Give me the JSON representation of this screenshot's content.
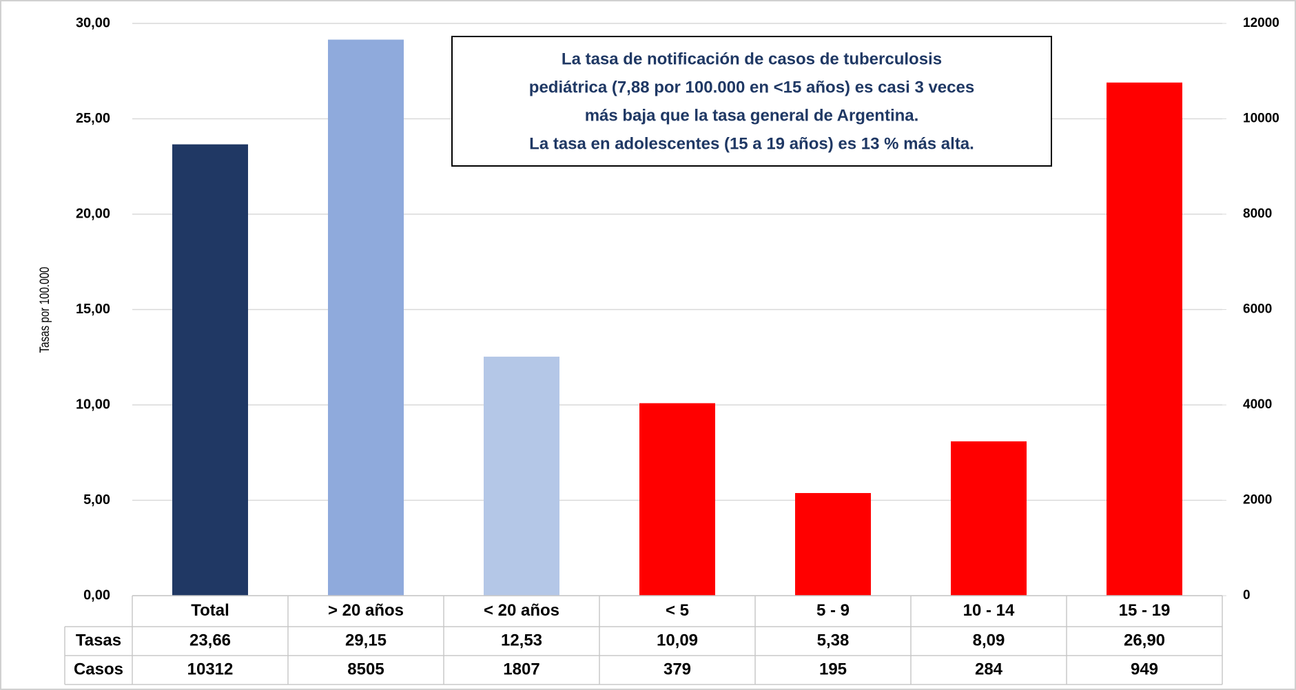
{
  "chart_data": {
    "type": "bar",
    "y_label": "Tasas por 100.000",
    "annotation": [
      "La tasa de  notificación de casos de tuberculosis",
      "pediátrica (7,88 por 100.000 en <15 años) es casi 3 veces",
      "más baja que la tasa general de Argentina.",
      "La tasa en adolescentes (15 a 19 años) es 13 % más alta."
    ],
    "categories": [
      "Total",
      "> 20 años",
      "< 20 años",
      "< 5",
      "5 - 9",
      "10 - 14",
      "15 - 19"
    ],
    "series": [
      {
        "name": "Tasas",
        "values": [
          23.66,
          29.15,
          12.53,
          10.09,
          5.38,
          8.09,
          26.9
        ],
        "value_labels": [
          "23,66",
          "29,15",
          "12,53",
          "10,09",
          "5,38",
          "8,09",
          "26,90"
        ],
        "colors": [
          "#203864",
          "#8faadc",
          "#b4c7e7",
          "#ff0000",
          "#ff0000",
          "#ff0000",
          "#ff0000"
        ]
      },
      {
        "name": "Casos",
        "axis": "y2",
        "values": [
          10312,
          8505,
          1807,
          379,
          195,
          284,
          949
        ]
      }
    ],
    "ylim": [
      0,
      30
    ],
    "yticks": [
      {
        "value": 0,
        "label": "0,00"
      },
      {
        "value": 5,
        "label": "5,00"
      },
      {
        "value": 10,
        "label": "10,00"
      },
      {
        "value": 15,
        "label": "15,00"
      },
      {
        "value": 20,
        "label": "20,00"
      },
      {
        "value": 25,
        "label": "25,00"
      },
      {
        "value": 30,
        "label": "30,00"
      }
    ],
    "y2lim": [
      0,
      12000
    ],
    "y2ticks": [
      0,
      2000,
      4000,
      6000,
      8000,
      10000,
      12000
    ],
    "grid": true
  }
}
